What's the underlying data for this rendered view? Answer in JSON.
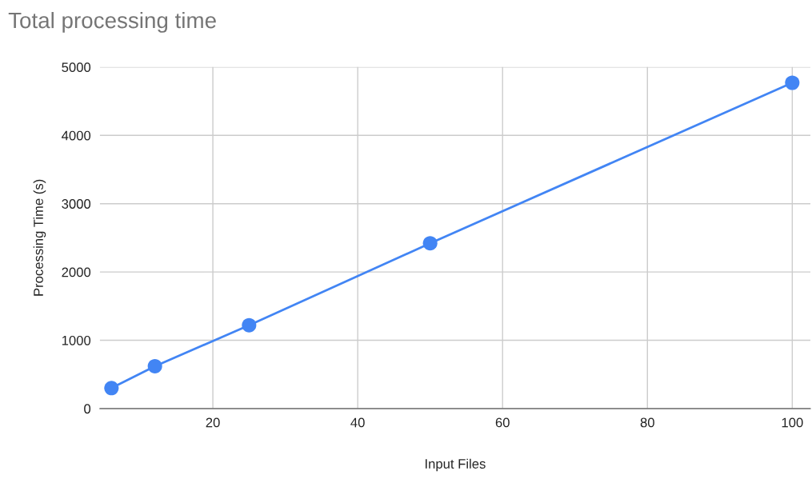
{
  "chart_data": {
    "type": "line",
    "title": "Total processing time",
    "xlabel": "Input Files",
    "ylabel": "Processing Time (s)",
    "x": [
      6,
      12,
      25,
      50,
      100
    ],
    "series": [
      {
        "color": "#4285f4",
        "values": [
          300,
          620,
          1220,
          2420,
          4770
        ]
      }
    ],
    "xlim": [
      4.4,
      102.5
    ],
    "xticks": [
      20,
      40,
      60,
      80,
      100
    ],
    "ylim": [
      0,
      5000
    ],
    "yticks": [
      0,
      1000,
      2000,
      3000,
      4000,
      5000
    ],
    "grid": true,
    "marker": "circle",
    "line_style": "solid"
  }
}
